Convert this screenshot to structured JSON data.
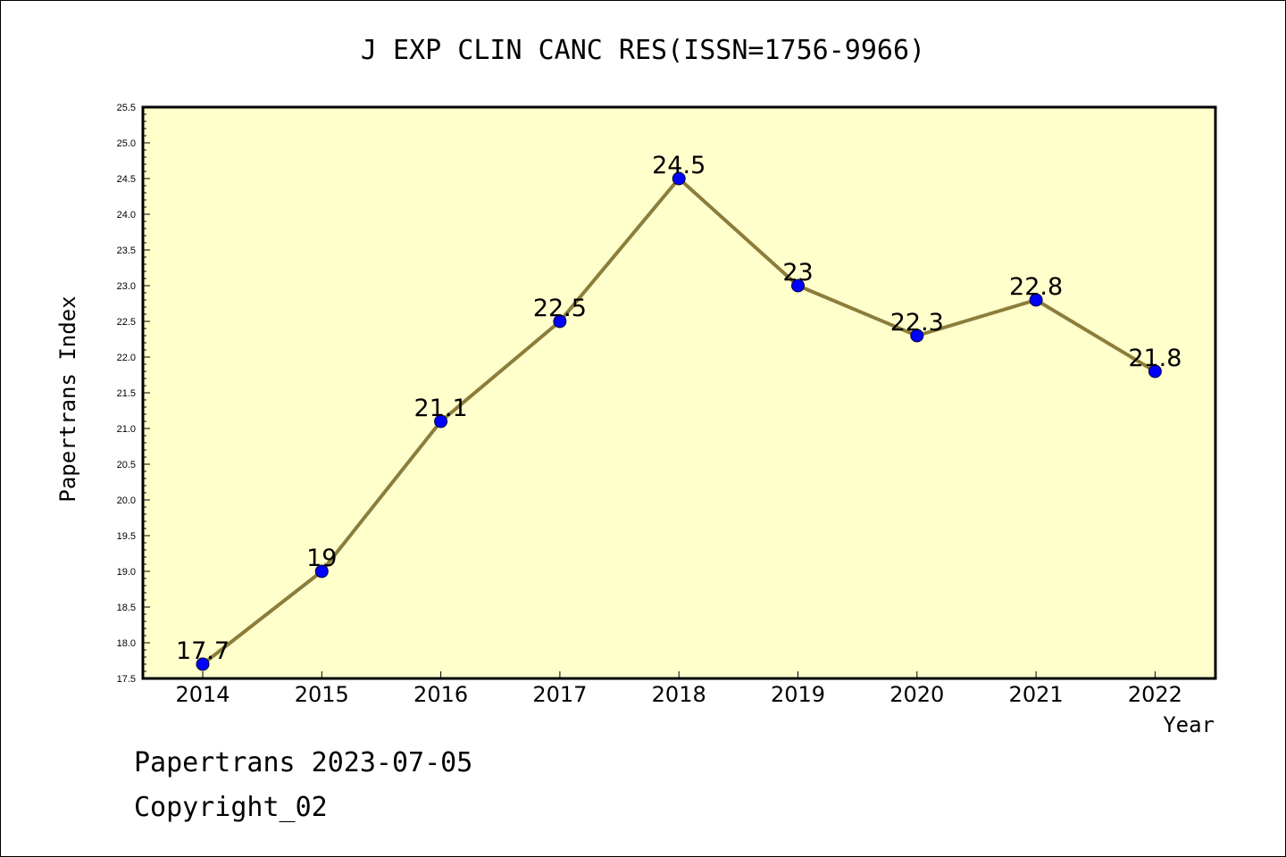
{
  "chart_data": {
    "type": "line",
    "title": "J EXP CLIN CANC RES(ISSN=1756-9966)",
    "xlabel": "Year",
    "ylabel": "Papertrans Index",
    "categories": [
      "2014",
      "2015",
      "2016",
      "2017",
      "2018",
      "2019",
      "2020",
      "2021",
      "2022"
    ],
    "series": [
      {
        "values": [
          17.7,
          19,
          21.1,
          22.5,
          24.5,
          23,
          22.3,
          22.8,
          21.8
        ],
        "labels": [
          "17.7",
          "19",
          "21.1",
          "22.5",
          "24.5",
          "23",
          "22.3",
          "22.8",
          "21.8"
        ]
      }
    ],
    "ylim": [
      17.5,
      25.5
    ],
    "yticks": [
      "17.5",
      "18.0",
      "18.5",
      "19.0",
      "19.5",
      "20.0",
      "20.5",
      "21.0",
      "21.5",
      "22.0",
      "22.5",
      "23.0",
      "23.5",
      "24.0",
      "24.5",
      "25.0",
      "25.5"
    ],
    "grid": false,
    "colors": {
      "background": "#ffffcc",
      "line": "#8b7d3a",
      "marker": "#0000ff"
    }
  },
  "footer": {
    "line1": "Papertrans 2023-07-05",
    "line2": "Copyright_02"
  }
}
